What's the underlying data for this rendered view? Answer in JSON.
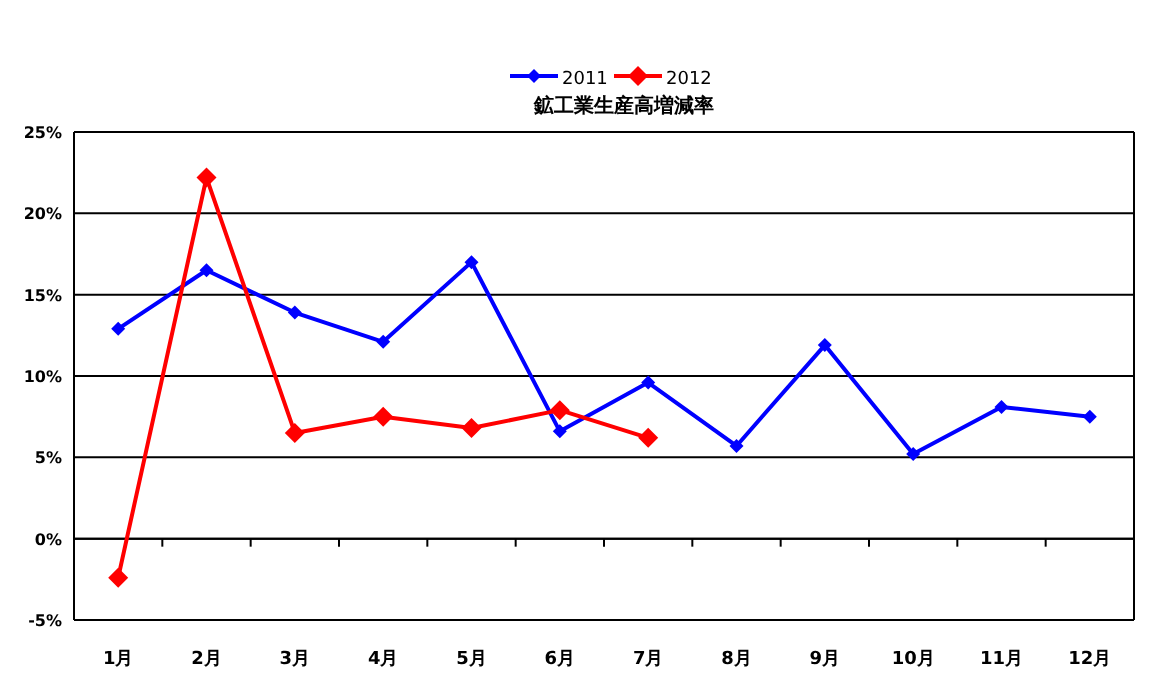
{
  "chart_data": {
    "type": "line",
    "title": "鉱工業生産高増減率",
    "categories": [
      "1月",
      "2月",
      "3月",
      "4月",
      "5月",
      "6月",
      "7月",
      "8月",
      "9月",
      "10月",
      "11月",
      "12月"
    ],
    "series": [
      {
        "name": "2011",
        "color": "#0000ff",
        "values": [
          12.9,
          16.5,
          13.9,
          12.1,
          17.0,
          6.6,
          9.6,
          5.7,
          11.9,
          5.2,
          8.1,
          7.5
        ]
      },
      {
        "name": "2012",
        "color": "#ff0000",
        "values": [
          -2.4,
          22.2,
          6.5,
          7.5,
          6.8,
          7.9,
          6.2,
          null,
          null,
          null,
          null,
          null
        ]
      }
    ],
    "ylim": [
      -5,
      25
    ],
    "yticks": [
      {
        "value": -5,
        "label": "-5%"
      },
      {
        "value": 0,
        "label": "0%"
      },
      {
        "value": 5,
        "label": "5%"
      },
      {
        "value": 10,
        "label": "10%"
      },
      {
        "value": 15,
        "label": "15%"
      },
      {
        "value": 20,
        "label": "20%"
      },
      {
        "value": 25,
        "label": "25%"
      }
    ],
    "grid": "y",
    "legend": "top",
    "marker": "diamond",
    "line_style": "solid"
  }
}
